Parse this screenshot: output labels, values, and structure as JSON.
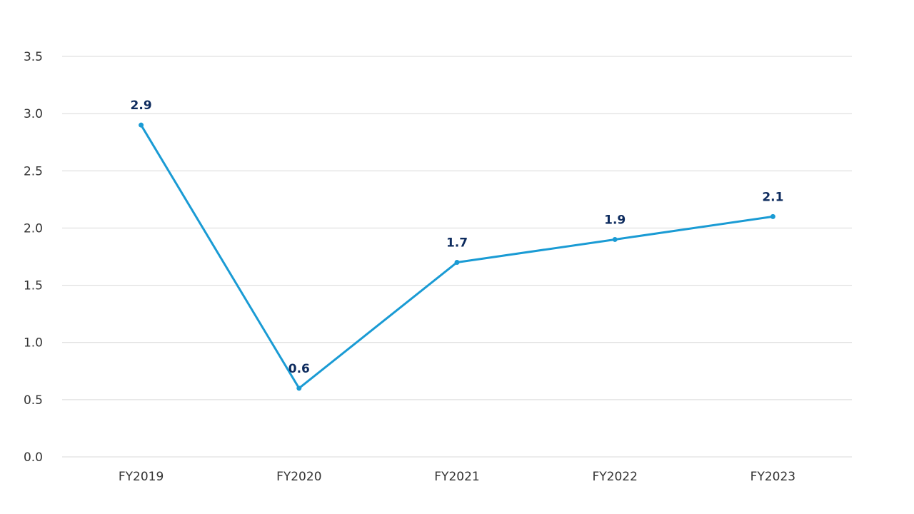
{
  "chart_data": {
    "type": "line",
    "title": "",
    "xlabel": "",
    "ylabel": "",
    "categories": [
      "FY2019",
      "FY2020",
      "FY2021",
      "FY2022",
      "FY2023"
    ],
    "series": [
      {
        "values": [
          2.9,
          0.6,
          1.7,
          1.9,
          2.1
        ]
      }
    ],
    "ylim": [
      0,
      3.5
    ],
    "yticks": [
      "0.0",
      "0.5",
      "1.0",
      "1.5",
      "2.0",
      "2.5",
      "3.0",
      "3.5"
    ],
    "data_labels": [
      "2.9",
      "0.6",
      "1.7",
      "1.9",
      "2.1"
    ],
    "grid": true,
    "legend": "none",
    "colors": {
      "line": "#1a9bd4",
      "data_label": "#0d2b5e",
      "grid": "#d9d9d9"
    }
  }
}
